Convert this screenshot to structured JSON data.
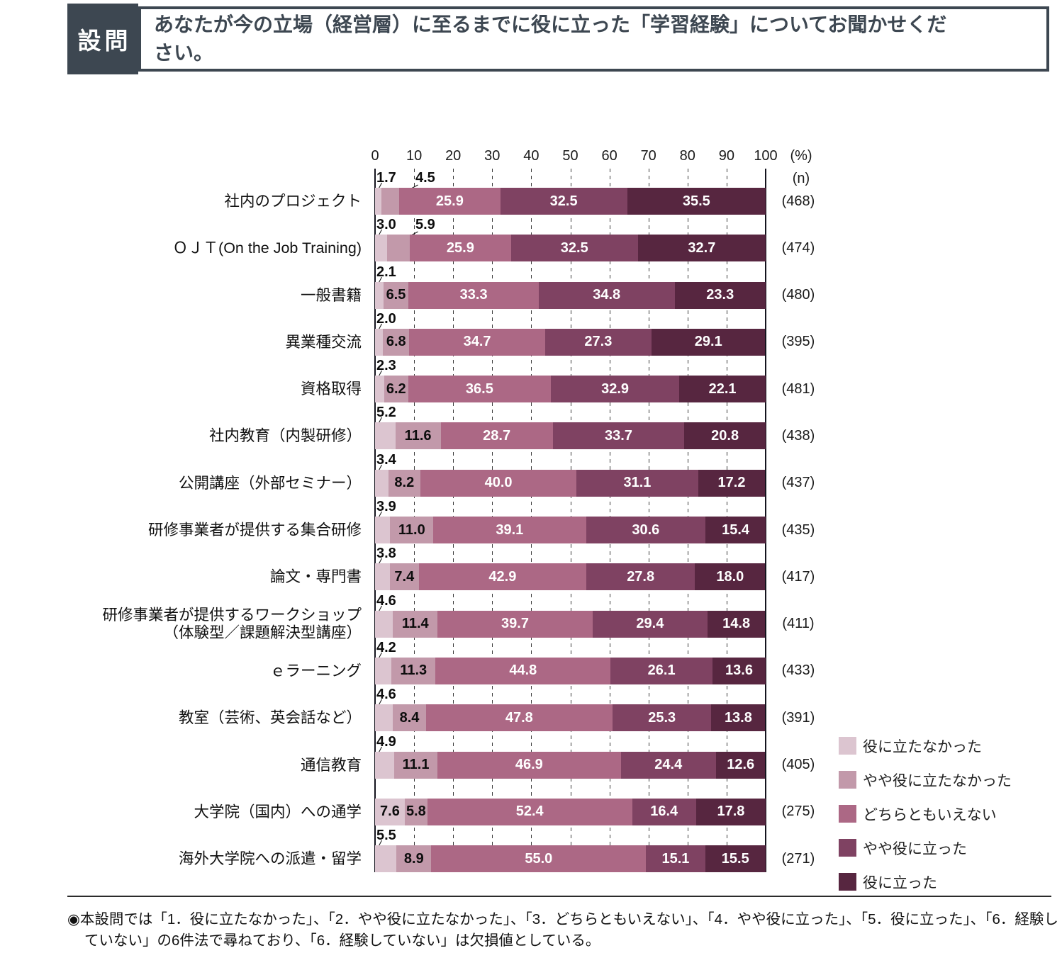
{
  "header": {
    "badge": "設問",
    "question": "あなたが今の立場（経営層）に至るまでに役に立った「学習経験」についてお聞かせください。"
  },
  "chart_data": {
    "type": "bar",
    "orientation": "horizontal",
    "stacked": true,
    "axis": {
      "range": [
        0,
        100
      ],
      "ticks": [
        0,
        10,
        20,
        30,
        40,
        50,
        60,
        70,
        80,
        90,
        100
      ],
      "unit_label": "(%)",
      "n_label": "(n)",
      "grid": "dashed-vertical"
    },
    "legend": {
      "position": "right-bottom",
      "items": [
        {
          "label": "役に立たなかった",
          "color": "#DCC5D0"
        },
        {
          "label": "やや役に立たなかった",
          "color": "#C299AA"
        },
        {
          "label": "どちらともいえない",
          "color": "#AC6885"
        },
        {
          "label": "やや役に立った",
          "color": "#7F4262"
        },
        {
          "label": "役に立った",
          "color": "#572640"
        }
      ]
    },
    "rows": [
      {
        "category": "社内のプロジェクト",
        "values": [
          1.7,
          4.5,
          25.9,
          32.5,
          35.5
        ],
        "n": 468,
        "v1": "above",
        "v2": "above"
      },
      {
        "category": "ＯＪＴ(On the Job Training)",
        "values": [
          3.0,
          5.9,
          25.9,
          32.5,
          32.7
        ],
        "n": 474,
        "v1": "above",
        "v2": "above"
      },
      {
        "category": "一般書籍",
        "values": [
          2.1,
          6.5,
          33.3,
          34.8,
          23.3
        ],
        "n": 480,
        "v1": "above",
        "v2": "inside"
      },
      {
        "category": "異業種交流",
        "values": [
          2.0,
          6.8,
          34.7,
          27.3,
          29.1
        ],
        "n": 395,
        "v1": "above",
        "v2": "inside"
      },
      {
        "category": "資格取得",
        "values": [
          2.3,
          6.2,
          36.5,
          32.9,
          22.1
        ],
        "n": 481,
        "v1": "above",
        "v2": "inside"
      },
      {
        "category": "社内教育（内製研修）",
        "values": [
          5.2,
          11.6,
          28.7,
          33.7,
          20.8
        ],
        "n": 438,
        "v1": "above",
        "v2": "inside"
      },
      {
        "category": "公開講座（外部セミナー）",
        "values": [
          3.4,
          8.2,
          40.0,
          31.1,
          17.2
        ],
        "n": 437,
        "v1": "above",
        "v2": "inside"
      },
      {
        "category": "研修事業者が提供する集合研修",
        "values": [
          3.9,
          11.0,
          39.1,
          30.6,
          15.4
        ],
        "n": 435,
        "v1": "above",
        "v2": "inside"
      },
      {
        "category": "論文・専門書",
        "values": [
          3.8,
          7.4,
          42.9,
          27.8,
          18.0
        ],
        "n": 417,
        "v1": "above",
        "v2": "inside"
      },
      {
        "category": "研修事業者が提供するワークショップ",
        "category2": "（体験型／課題解決型講座）",
        "values": [
          4.6,
          11.4,
          39.7,
          29.4,
          14.8
        ],
        "n": 411,
        "v1": "above",
        "v2": "inside"
      },
      {
        "category": "ｅラーニング",
        "values": [
          4.2,
          11.3,
          44.8,
          26.1,
          13.6
        ],
        "n": 433,
        "v1": "above",
        "v2": "inside"
      },
      {
        "category": "教室（芸術、英会話など）",
        "values": [
          4.6,
          8.4,
          47.8,
          25.3,
          13.8
        ],
        "n": 391,
        "v1": "above",
        "v2": "inside"
      },
      {
        "category": "通信教育",
        "values": [
          4.9,
          11.1,
          46.9,
          24.4,
          12.6
        ],
        "n": 405,
        "v1": "above",
        "v2": "inside"
      },
      {
        "category": "大学院（国内）への通学",
        "values": [
          7.6,
          5.8,
          52.4,
          16.4,
          17.8
        ],
        "n": 275,
        "v1": "inside",
        "v2": "inside"
      },
      {
        "category": "海外大学院への派遣・留学",
        "values": [
          5.5,
          8.9,
          55.0,
          15.1,
          15.5
        ],
        "n": 271,
        "v1": "above",
        "v2": "inside"
      }
    ]
  },
  "footnote": "◉本設問では「1．役に立たなかった」、「2．やや役に立たなかった」、「3．どちらともいえない」、「4．やや役に立った」、「5．役に立った」、「6．経験していない」の6件法で尋ねており、「6．経験していない」は欠損値としている。"
}
